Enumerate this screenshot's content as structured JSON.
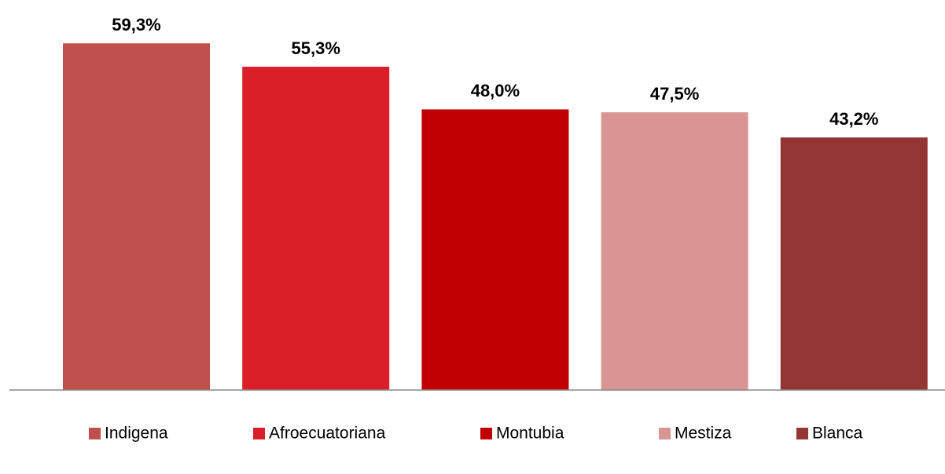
{
  "chart_data": {
    "type": "bar",
    "series": [
      {
        "name": "Indigena",
        "color": "#c0504d",
        "values": [
          59.3
        ],
        "value_labels": [
          "59,3%"
        ]
      },
      {
        "name": "Afroecuatoriana",
        "color": "#da1f28",
        "values": [
          55.3
        ],
        "value_labels": [
          "55,3%"
        ]
      },
      {
        "name": "Montubia",
        "color": "#c00000",
        "values": [
          48.0
        ],
        "value_labels": [
          "48,0%"
        ]
      },
      {
        "name": "Mestiza",
        "color": "#d99594",
        "values": [
          47.5
        ],
        "value_labels": [
          "47,5%"
        ]
      },
      {
        "name": "Blanca",
        "color": "#943634",
        "values": [
          43.2
        ],
        "value_labels": [
          "43,2%"
        ]
      }
    ],
    "ylim": [
      0,
      60
    ],
    "legend": "bottom"
  }
}
